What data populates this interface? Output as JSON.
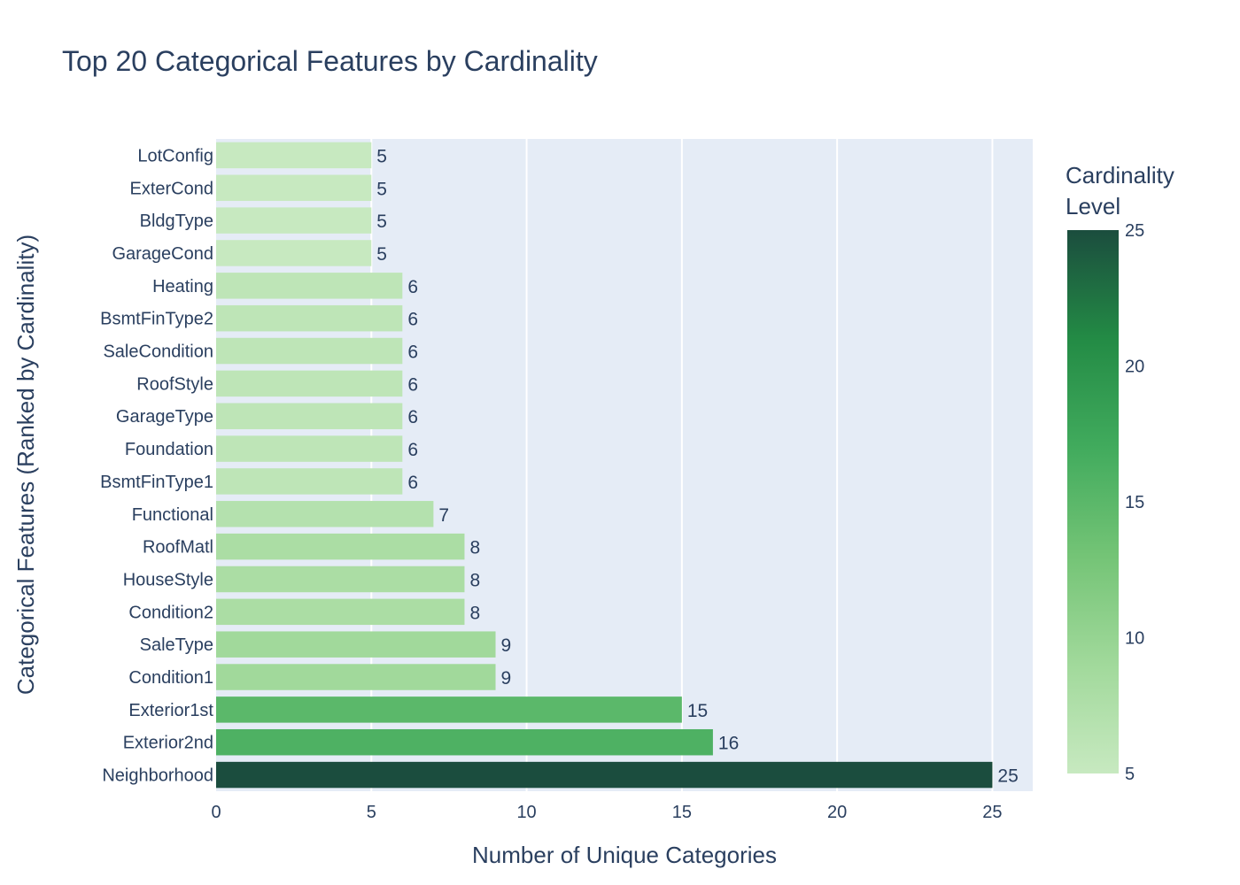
{
  "chart_data": {
    "type": "bar",
    "orientation": "horizontal",
    "title": "Top 20 Categorical Features by Cardinality",
    "xlabel": "Number of Unique Categories",
    "ylabel": "Categorical Features (Ranked by Cardinality)",
    "xlim": [
      0,
      26.3
    ],
    "xticks": [
      0,
      5,
      10,
      15,
      20,
      25
    ],
    "grid": true,
    "categories": [
      "LotConfig",
      "ExterCond",
      "BldgType",
      "GarageCond",
      "Heating",
      "BsmtFinType2",
      "SaleCondition",
      "RoofStyle",
      "GarageType",
      "Foundation",
      "BsmtFinType1",
      "Functional",
      "RoofMatl",
      "HouseStyle",
      "Condition2",
      "SaleType",
      "Condition1",
      "Exterior1st",
      "Exterior2nd",
      "Neighborhood"
    ],
    "values": [
      5,
      5,
      5,
      5,
      6,
      6,
      6,
      6,
      6,
      6,
      6,
      7,
      8,
      8,
      8,
      9,
      9,
      15,
      16,
      25
    ],
    "colorbar": {
      "title_lines": [
        "Cardinality",
        "Level"
      ],
      "min": 5,
      "max": 25,
      "ticks": [
        5,
        10,
        15,
        20,
        25
      ],
      "colors": [
        "#c7e9c0",
        "#a1d99b",
        "#74c476",
        "#41ab5d",
        "#238b45",
        "#1b4d3e"
      ]
    },
    "plot_bg": "#e5ecf6",
    "text_color": "#2a3f5f"
  }
}
